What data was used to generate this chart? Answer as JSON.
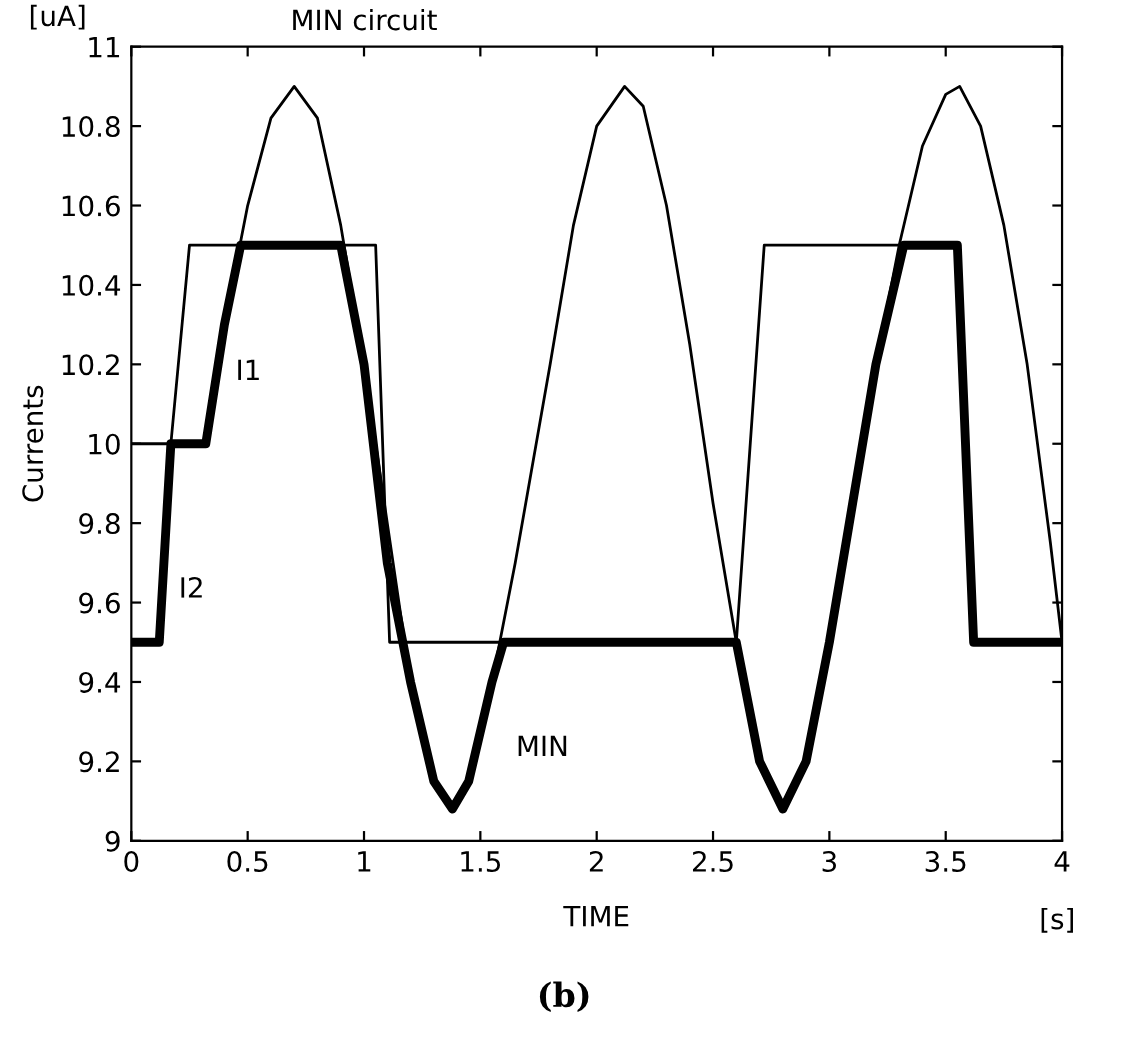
{
  "chart_data": {
    "type": "line",
    "title": "MIN circuit",
    "xlabel": "TIME",
    "ylabel": "Currents",
    "annotations": [
      "[uA]",
      "[s]",
      "(b)"
    ],
    "series": [
      {
        "name": "I1",
        "color": "#000000",
        "x": [
          0,
          0.32,
          0.4,
          0.5,
          0.6,
          0.7,
          0.8,
          0.9,
          1.0,
          1.1,
          1.2,
          1.3,
          1.38,
          1.45,
          1.55,
          1.65,
          1.8,
          1.9,
          2.0,
          2.12,
          2.2,
          2.3,
          2.4,
          2.5,
          2.6,
          2.7,
          2.8,
          2.9,
          3.0,
          3.1,
          3.2,
          3.3,
          3.4,
          3.5,
          3.56,
          3.65,
          3.75,
          3.85,
          3.95,
          4.0
        ],
        "values": [
          10,
          10,
          10.3,
          10.6,
          10.82,
          10.9,
          10.82,
          10.55,
          10.2,
          9.8,
          9.4,
          9.15,
          9.08,
          9.15,
          9.4,
          9.7,
          10.2,
          10.55,
          10.8,
          10.9,
          10.85,
          10.6,
          10.25,
          9.85,
          9.5,
          9.2,
          9.08,
          9.2,
          9.5,
          9.85,
          10.2,
          10.5,
          10.75,
          10.88,
          10.9,
          10.8,
          10.55,
          10.2,
          9.75,
          9.5
        ]
      },
      {
        "name": "I2",
        "color": "#000000",
        "x": [
          0,
          0.12,
          0.17,
          0.25,
          1.05,
          1.11,
          2.6,
          2.72,
          3.55,
          3.62,
          4.0
        ],
        "values": [
          9.5,
          9.5,
          10,
          10.5,
          10.5,
          9.5,
          9.5,
          10.5,
          10.5,
          9.5,
          9.5
        ]
      },
      {
        "name": "MIN",
        "color": "#000000",
        "x": [
          0,
          0.12,
          0.17,
          0.32,
          0.4,
          0.47,
          0.9,
          1.0,
          1.1,
          1.2,
          1.3,
          1.38,
          1.45,
          1.55,
          1.6,
          2.6,
          2.7,
          2.8,
          2.9,
          3.0,
          3.1,
          3.2,
          3.32,
          3.55,
          3.62,
          4.0
        ],
        "values": [
          9.5,
          9.5,
          10,
          10,
          10.3,
          10.5,
          10.5,
          10.2,
          9.7,
          9.4,
          9.15,
          9.08,
          9.15,
          9.4,
          9.5,
          9.5,
          9.2,
          9.08,
          9.2,
          9.5,
          9.85,
          10.2,
          10.5,
          10.5,
          9.5,
          9.5
        ]
      }
    ],
    "xlim": [
      0,
      4
    ],
    "ylim": [
      9,
      11
    ],
    "xticks": [
      0,
      0.5,
      1,
      1.5,
      2,
      2.5,
      3,
      3.5,
      4
    ],
    "yticks": [
      9,
      9.2,
      9.4,
      9.6,
      9.8,
      10,
      10.2,
      10.4,
      10.6,
      10.8,
      11
    ],
    "grid": false,
    "legend": false,
    "marker": "none",
    "line_style": "solid"
  }
}
